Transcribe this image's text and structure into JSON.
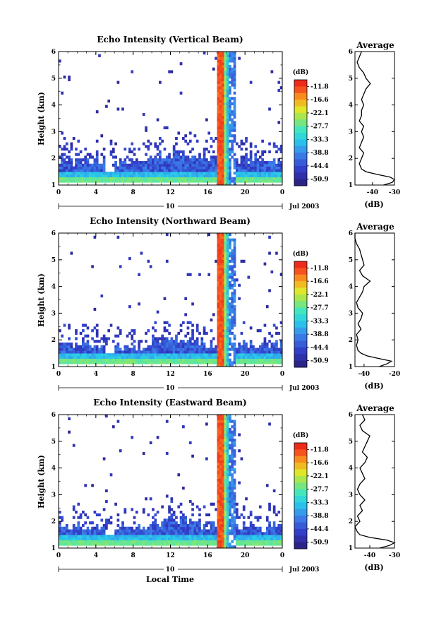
{
  "figure": {
    "date_label": "Jul 2003",
    "day_label": "10",
    "xlabel": "Local Time",
    "ylabel": "Height (km)",
    "colorbar_unit": "(dB)",
    "colorbar_ticks": [
      "-11.8",
      "-16.6",
      "-22.1",
      "-27.7",
      "-33.3",
      "-38.8",
      "-44.4",
      "-50.9"
    ],
    "avg_title": "Average",
    "avg_xlabel": "(dB)"
  },
  "chart_data": [
    {
      "type": "heatmap",
      "title": "Echo Intensity (Vertical Beam)",
      "xlabel": "",
      "ylabel": "Height (km)",
      "xlim": [
        0,
        24
      ],
      "ylim": [
        1,
        6
      ],
      "x_ticks": [
        "0",
        "4",
        "8",
        "12",
        "16",
        "20",
        "0"
      ],
      "y_ticks": [
        "1",
        "2",
        "3",
        "4",
        "5",
        "6"
      ],
      "colorbar": {
        "unit": "(dB)",
        "range": [
          -50.9,
          -11.8
        ],
        "ticks": [
          -11.8,
          -16.6,
          -22.1,
          -27.7,
          -33.3,
          -38.8,
          -44.4,
          -50.9
        ]
      },
      "features": {
        "boundary_layer_top_km": 1.9,
        "boundary_layer_bottom_km": 1.2,
        "gap_hours": [
          5,
          6
        ],
        "strong_echo_column_hours": [
          17.0,
          18.2
        ],
        "strong_echo_column_top_km": 6
      },
      "average_profile": {
        "title": "Average",
        "xlabel": "(dB)",
        "xlim": [
          -48,
          -30
        ],
        "x_ticks": [
          "-40",
          "-30"
        ],
        "height_km": [
          1.0,
          1.1,
          1.2,
          1.3,
          1.4,
          1.5,
          1.6,
          1.8,
          2.0,
          2.2,
          2.4,
          2.6,
          2.8,
          3.0,
          3.2,
          3.4,
          3.6,
          3.8,
          4.0,
          4.2,
          4.4,
          4.6,
          4.8,
          5.0,
          5.2,
          5.4,
          5.6,
          5.8,
          6.0
        ],
        "value_db": [
          -35,
          -31,
          -30,
          -32,
          -38,
          -43,
          -45,
          -46,
          -45,
          -44,
          -46,
          -45,
          -44,
          -45,
          -44,
          -46,
          -45,
          -45,
          -44,
          -45,
          -44,
          -43,
          -41,
          -43,
          -44,
          -46,
          -47,
          -46,
          -45
        ]
      }
    },
    {
      "type": "heatmap",
      "title": "Echo Intensity (Northward Beam)",
      "xlabel": "",
      "ylabel": "Height (km)",
      "xlim": [
        0,
        24
      ],
      "ylim": [
        1,
        6
      ],
      "x_ticks": [
        "0",
        "4",
        "8",
        "12",
        "16",
        "20",
        "0"
      ],
      "y_ticks": [
        "1",
        "2",
        "3",
        "4",
        "5",
        "6"
      ],
      "colorbar": {
        "unit": "(dB)",
        "range": [
          -50.9,
          -11.8
        ],
        "ticks": [
          -11.8,
          -16.6,
          -22.1,
          -27.7,
          -33.3,
          -38.8,
          -44.4,
          -50.9
        ]
      },
      "features": {
        "boundary_layer_top_km": 1.8,
        "boundary_layer_bottom_km": 1.2,
        "gap_hours": [
          5,
          6
        ],
        "strong_echo_column_hours": [
          17.0,
          18.2
        ],
        "strong_echo_column_top_km": 6
      },
      "average_profile": {
        "title": "Average",
        "xlabel": "(dB)",
        "xlim": [
          -46,
          -20
        ],
        "x_ticks": [
          "-40",
          "-20"
        ],
        "height_km": [
          1.0,
          1.1,
          1.2,
          1.3,
          1.4,
          1.5,
          1.6,
          1.8,
          2.0,
          2.2,
          2.4,
          2.6,
          2.8,
          3.0,
          3.2,
          3.4,
          3.6,
          3.8,
          4.0,
          4.2,
          4.4,
          4.6,
          4.8,
          5.0,
          5.2,
          5.4,
          5.6,
          5.8,
          6.0
        ],
        "value_db": [
          -30,
          -25,
          -22,
          -30,
          -38,
          -42,
          -44,
          -45,
          -44,
          -45,
          -42,
          -44,
          -42,
          -41,
          -44,
          -45,
          -43,
          -41,
          -40,
          -36,
          -41,
          -43,
          -40,
          -41,
          -42,
          -43,
          -45,
          -46,
          -46
        ]
      }
    },
    {
      "type": "heatmap",
      "title": "Echo Intensity (Eastward Beam)",
      "xlabel": "Local Time",
      "ylabel": "Height (km)",
      "xlim": [
        0,
        24
      ],
      "ylim": [
        1,
        6
      ],
      "x_ticks": [
        "0",
        "4",
        "8",
        "12",
        "16",
        "20",
        "0"
      ],
      "y_ticks": [
        "1",
        "2",
        "3",
        "4",
        "5",
        "6"
      ],
      "colorbar": {
        "unit": "(dB)",
        "range": [
          -50.9,
          -11.8
        ],
        "ticks": [
          -11.8,
          -16.6,
          -22.1,
          -27.7,
          -33.3,
          -38.8,
          -44.4,
          -50.9
        ]
      },
      "features": {
        "boundary_layer_top_km": 1.8,
        "boundary_layer_bottom_km": 1.2,
        "gap_hours": [
          5,
          6
        ],
        "strong_echo_column_hours": [
          17.0,
          18.2
        ],
        "strong_echo_column_top_km": 6
      },
      "average_profile": {
        "title": "Average",
        "xlabel": "(dB)",
        "xlim": [
          -46,
          -30
        ],
        "x_ticks": [
          "-40",
          "-30"
        ],
        "height_km": [
          1.0,
          1.1,
          1.2,
          1.3,
          1.4,
          1.5,
          1.6,
          1.8,
          2.0,
          2.2,
          2.4,
          2.6,
          2.8,
          3.0,
          3.2,
          3.4,
          3.6,
          3.8,
          4.0,
          4.2,
          4.4,
          4.6,
          4.8,
          5.0,
          5.2,
          5.4,
          5.6,
          5.8,
          6.0
        ],
        "value_db": [
          -36,
          -32,
          -30,
          -33,
          -40,
          -44,
          -45,
          -46,
          -44,
          -45,
          -43,
          -44,
          -42,
          -44,
          -45,
          -44,
          -42,
          -43,
          -44,
          -42,
          -41,
          -43,
          -42,
          -41,
          -40,
          -43,
          -44,
          -42,
          -43
        ]
      }
    }
  ]
}
